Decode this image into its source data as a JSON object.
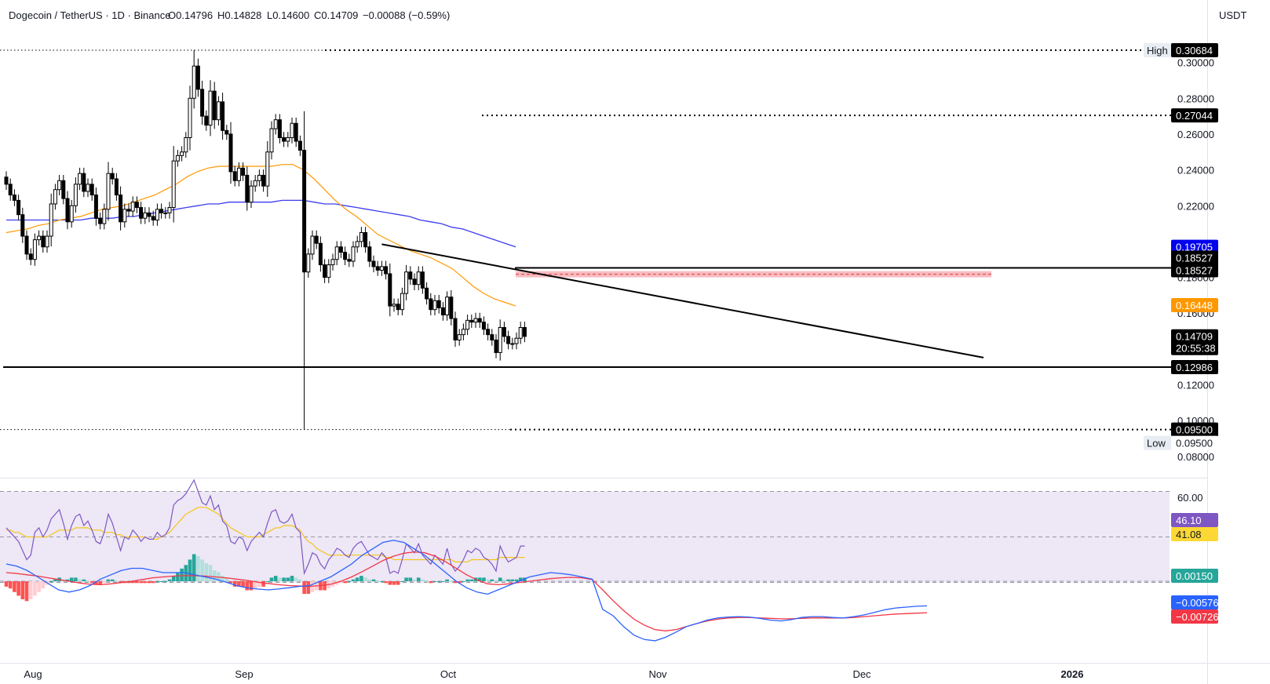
{
  "header": {
    "symbol": "Dogecoin / TetherUS · 1D · Binance",
    "open_label": "O",
    "open": "0.14796",
    "high_label": "H",
    "high": "0.14828",
    "low_label": "L",
    "low": "0.14600",
    "close_label": "C",
    "close": "0.14709",
    "change": "−0.00088 (−0.59%)",
    "currency": "USDT"
  },
  "price_axis": {
    "ticks": [
      "0.30000",
      "0.28000",
      "0.26000",
      "0.24000",
      "0.22000",
      "0.18000",
      "0.16000",
      "0.12000",
      "0.10000",
      "0.08000"
    ],
    "tick_values": [
      0.3,
      0.28,
      0.26,
      0.24,
      0.22,
      0.18,
      0.16,
      0.12,
      0.1,
      0.08
    ]
  },
  "price_labels": [
    {
      "key": "high-tag",
      "prefix": "High",
      "text": "0.30684",
      "value": 0.30684,
      "bg": "#ffffff",
      "fg": "#131722",
      "prefix_bg": "#e8edf3"
    },
    {
      "key": "high-line",
      "text": "0.30684",
      "value": 0.30684,
      "bg": "#000000",
      "fg": "#ffffff"
    },
    {
      "key": "level-27044",
      "text": "0.27044",
      "value": 0.27044,
      "bg": "#000000",
      "fg": "#ffffff"
    },
    {
      "key": "ma200",
      "text": "0.19705",
      "value": 0.19705,
      "bg": "#0000ee",
      "fg": "#ffffff"
    },
    {
      "key": "level-18527a",
      "text": "0.18527",
      "value": 0.18527,
      "bg": "#000000",
      "fg": "#ffffff",
      "offset": -13
    },
    {
      "key": "level-18527b",
      "text": "0.18527",
      "value": 0.18527,
      "bg": "#000000",
      "fg": "#ffffff",
      "offset": 3
    },
    {
      "key": "ma50",
      "text": "0.16448",
      "value": 0.16448,
      "bg": "#ff9800",
      "fg": "#ffffff"
    },
    {
      "key": "last",
      "text": "0.14709",
      "value": 0.14709,
      "bg": "#000000",
      "fg": "#ffffff"
    },
    {
      "key": "countdown",
      "text": "20:55:38",
      "value": 0.14709,
      "bg": "#000000",
      "fg": "#ffffff",
      "offset": 15
    },
    {
      "key": "support",
      "text": "0.12986",
      "value": 0.12986,
      "bg": "#000000",
      "fg": "#ffffff"
    },
    {
      "key": "low-line",
      "text": "0.09500",
      "value": 0.095,
      "bg": "#000000",
      "fg": "#ffffff"
    },
    {
      "key": "low-tag",
      "prefix": "Low",
      "text": "0.09500",
      "value": 0.095,
      "bg": "#ffffff",
      "fg": "#131722",
      "prefix_bg": "#e8edf3",
      "offset": 17
    }
  ],
  "rsi": {
    "tick": "60.00",
    "value_label": "46.10",
    "value_bg": "#7e57c2",
    "ma_label": "41.08",
    "ma_bg": "#fdd835"
  },
  "macd": {
    "hist_label": "0.00150",
    "hist_bg": "#26a69a",
    "macd_label": "−0.00576",
    "macd_bg": "#2962ff",
    "signal_label": "−0.00726",
    "signal_bg": "#f23645"
  },
  "time_axis": {
    "labels": [
      "Aug",
      "Sep",
      "Oct",
      "Nov",
      "Dec",
      "2026"
    ]
  },
  "colors": {
    "up_body": "#ffffff",
    "down_body": "#000000",
    "wick": "#000000",
    "ma50": "#ff9800",
    "ma200": "#3c3cf0",
    "zone": "#f4a6ae",
    "zone_line": "#e53935",
    "rsi_line": "#7e57c2",
    "rsi_ma": "#f5c518",
    "rsi_band": "#ede7f6",
    "macd_line": "#2962ff",
    "signal_line": "#f23645",
    "hist_up_strong": "#26a69a",
    "hist_up_weak": "#b2dfdb",
    "hist_down_strong": "#ff5252",
    "hist_down_weak": "#ffcdd2"
  },
  "chart_data": {
    "type": "candlestick",
    "pair": "Dogecoin / TetherUS",
    "interval": "1D",
    "exchange": "Binance",
    "y_range": [
      0.073,
      0.314
    ],
    "x_range": [
      "Jul 26",
      "Jan 3"
    ],
    "months": [
      "Aug",
      "Sep",
      "Oct",
      "Nov",
      "Dec",
      "2026"
    ],
    "high": 0.30684,
    "low": 0.095,
    "levels": [
      0.30684,
      0.27044,
      0.18527,
      0.12986,
      0.095
    ],
    "zone": [
      0.18,
      0.1835
    ],
    "trendline": [
      [
        0.1985,
        "Oct 28"
      ],
      [
        0.1352,
        "Dec 12"
      ]
    ],
    "closes": [
      0.232,
      0.226,
      0.223,
      0.215,
      0.203,
      0.193,
      0.19,
      0.201,
      0.203,
      0.197,
      0.203,
      0.221,
      0.229,
      0.234,
      0.224,
      0.211,
      0.22,
      0.232,
      0.238,
      0.228,
      0.232,
      0.226,
      0.213,
      0.21,
      0.218,
      0.238,
      0.235,
      0.226,
      0.211,
      0.218,
      0.217,
      0.222,
      0.219,
      0.213,
      0.216,
      0.214,
      0.212,
      0.218,
      0.216,
      0.216,
      0.219,
      0.245,
      0.248,
      0.25,
      0.258,
      0.28,
      0.298,
      0.285,
      0.27,
      0.265,
      0.284,
      0.268,
      0.278,
      0.262,
      0.26,
      0.239,
      0.234,
      0.241,
      0.237,
      0.222,
      0.231,
      0.234,
      0.237,
      0.231,
      0.25,
      0.263,
      0.268,
      0.258,
      0.256,
      0.258,
      0.266,
      0.256,
      0.251,
      0.183,
      0.193,
      0.203,
      0.199,
      0.187,
      0.18,
      0.187,
      0.19,
      0.197,
      0.194,
      0.19,
      0.189,
      0.197,
      0.2,
      0.205,
      0.197,
      0.189,
      0.186,
      0.184,
      0.186,
      0.182,
      0.164,
      0.165,
      0.162,
      0.171,
      0.183,
      0.179,
      0.176,
      0.183,
      0.174,
      0.168,
      0.162,
      0.167,
      0.163,
      0.159,
      0.169,
      0.157,
      0.145,
      0.148,
      0.151,
      0.156,
      0.155,
      0.157,
      0.155,
      0.151,
      0.148,
      0.145,
      0.138,
      0.152,
      0.147,
      0.143,
      0.143,
      0.146,
      0.152,
      0.147
    ],
    "ma50": [
      0.205,
      0.206,
      0.207,
      0.209,
      0.21,
      0.212,
      0.213,
      0.214,
      0.216,
      0.218,
      0.219,
      0.22,
      0.222,
      0.224,
      0.226,
      0.229,
      0.232,
      0.236,
      0.239,
      0.241,
      0.242,
      0.242,
      0.242,
      0.242,
      0.242,
      0.242,
      0.243,
      0.243,
      0.24,
      0.235,
      0.229,
      0.223,
      0.218,
      0.214,
      0.209,
      0.204,
      0.201,
      0.198,
      0.195,
      0.193,
      0.191,
      0.188,
      0.185,
      0.18,
      0.175,
      0.171,
      0.168,
      0.166,
      0.164
    ],
    "ma200": [
      0.212,
      0.212,
      0.212,
      0.212,
      0.212,
      0.212,
      0.212,
      0.212,
      0.213,
      0.213,
      0.213,
      0.214,
      0.214,
      0.215,
      0.216,
      0.217,
      0.218,
      0.219,
      0.22,
      0.221,
      0.221,
      0.222,
      0.222,
      0.222,
      0.222,
      0.222,
      0.223,
      0.223,
      0.223,
      0.222,
      0.221,
      0.221,
      0.22,
      0.219,
      0.218,
      0.217,
      0.216,
      0.215,
      0.214,
      0.212,
      0.211,
      0.21,
      0.208,
      0.207,
      0.205,
      0.203,
      0.201,
      0.199,
      0.197
    ],
    "rsi_line": [
      54,
      52,
      50,
      48,
      44,
      40,
      42,
      52,
      54,
      50,
      53,
      58,
      60,
      62,
      56,
      49,
      55,
      59,
      60,
      55,
      57,
      53,
      48,
      47,
      52,
      60,
      56,
      50,
      44,
      50,
      49,
      53,
      51,
      48,
      50,
      49,
      49,
      52,
      50,
      51,
      54,
      64,
      66,
      67,
      69,
      72,
      75,
      70,
      65,
      64,
      68,
      62,
      64,
      57,
      55,
      48,
      47,
      50,
      49,
      44,
      48,
      50,
      52,
      50,
      56,
      61,
      62,
      57,
      56,
      57,
      60,
      54,
      52,
      34,
      38,
      43,
      42,
      38,
      36,
      40,
      42,
      45,
      44,
      42,
      41,
      45,
      47,
      48,
      45,
      42,
      41,
      40,
      43,
      41,
      34,
      35,
      34,
      40,
      47,
      45,
      43,
      47,
      42,
      40,
      38,
      42,
      40,
      38,
      45,
      38,
      35,
      37,
      40,
      44,
      43,
      45,
      44,
      41,
      40,
      38,
      35,
      46,
      42,
      39,
      40,
      41,
      46,
      46
    ],
    "rsi_ma": [
      53,
      53,
      52,
      52,
      51,
      50,
      50,
      50,
      50,
      50,
      50,
      51,
      52,
      53,
      53,
      53,
      53,
      54,
      54,
      54,
      54,
      53,
      53,
      53,
      52,
      52,
      52,
      51,
      51,
      50,
      50,
      50,
      50,
      50,
      50,
      49,
      49,
      49,
      50,
      51,
      52,
      54,
      56,
      58,
      60,
      61,
      62,
      63,
      63,
      63,
      62,
      61,
      60,
      58,
      56,
      54,
      53,
      52,
      51,
      50,
      50,
      50,
      50,
      51,
      52,
      53,
      54,
      54,
      55,
      55,
      55,
      54,
      53,
      50,
      48,
      47,
      45,
      44,
      43,
      42,
      42,
      42,
      42,
      42,
      42,
      42,
      42,
      42,
      42,
      42,
      42,
      42,
      42,
      41,
      41,
      40,
      40,
      40,
      40,
      40,
      40,
      40,
      40,
      40,
      40,
      40,
      40,
      40,
      40,
      40,
      39,
      39,
      39,
      39,
      40,
      40,
      40,
      40,
      40,
      40,
      40,
      41,
      41,
      41,
      41,
      41,
      41,
      41
    ],
    "rsi_levels": [
      70,
      50,
      30
    ],
    "macd_hist": [
      -3,
      -4,
      -6,
      -8,
      -10,
      -11,
      -10,
      -8,
      -6,
      -4,
      -2,
      0,
      1,
      2,
      1,
      1,
      2,
      2,
      1,
      1,
      0,
      -1,
      -2,
      -2,
      -1,
      1,
      1,
      0,
      -1,
      -1,
      -1,
      -1,
      -1,
      -1,
      -1,
      -1,
      -1,
      0,
      0,
      0,
      1,
      3,
      5,
      7,
      9,
      12,
      15,
      14,
      12,
      10,
      9,
      6,
      5,
      3,
      2,
      -1,
      -3,
      -3,
      -3,
      -5,
      -5,
      -4,
      -3,
      -3,
      0,
      2,
      3,
      2,
      2,
      2,
      3,
      2,
      1,
      -7,
      -7,
      -6,
      -5,
      -5,
      -5,
      -4,
      -3,
      -2,
      -1,
      -1,
      0,
      1,
      2,
      3,
      2,
      1,
      1,
      0,
      0,
      -1,
      -2,
      -2,
      -2,
      0,
      2,
      2,
      1,
      2,
      1,
      0,
      -1,
      0,
      0,
      0,
      1,
      0,
      -1,
      -1,
      0,
      1,
      1,
      2,
      2,
      2,
      1,
      1,
      0,
      2,
      1,
      1,
      1,
      1,
      2,
      2
    ],
    "macd_line": [
      0.004,
      0.0035,
      0.0025,
      0.001,
      -0.0005,
      -0.002,
      -0.0025,
      -0.002,
      -0.001,
      0.0005,
      0.0015,
      0.0025,
      0.003,
      0.003,
      0.0025,
      0.002,
      0.002,
      0.002,
      0.0015,
      0.001,
      0.0005,
      -0.0002,
      -0.001,
      -0.0015,
      -0.0018,
      -0.002,
      -0.0018,
      -0.0015,
      -0.0012,
      -0.001,
      0.0,
      0.001,
      0.0025,
      0.004,
      0.006,
      0.0075,
      0.009,
      0.0095,
      0.009,
      0.0075,
      0.006,
      0.004,
      0.002,
      0.0,
      -0.0015,
      -0.0025,
      -0.003,
      -0.002,
      -0.001,
      0.0,
      0.001,
      0.0015,
      0.002,
      0.0018,
      0.0015,
      0.001,
      0.0005,
      -0.0065,
      -0.008,
      -0.0105,
      -0.0125,
      -0.0135,
      -0.0138,
      -0.013,
      -0.0118,
      -0.0105,
      -0.0098,
      -0.009,
      -0.0085,
      -0.0083,
      -0.0082,
      -0.0083,
      -0.0086,
      -0.009,
      -0.0092,
      -0.0089,
      -0.0084,
      -0.0082,
      -0.0082,
      -0.0084,
      -0.0085,
      -0.0082,
      -0.0078,
      -0.0072,
      -0.0066,
      -0.0062,
      -0.006,
      -0.0058,
      -0.0057
    ],
    "signal_line": [
      0.002,
      0.0018,
      0.0015,
      0.0012,
      0.0008,
      0.0004,
      0.0,
      -0.0004,
      -0.0007,
      -0.0008,
      -0.0006,
      -0.0003,
      0.0,
      0.0004,
      0.0008,
      0.001,
      0.0012,
      0.0013,
      0.0013,
      0.0012,
      0.001,
      0.0008,
      0.0005,
      0.0002,
      -0.0002,
      -0.0005,
      -0.0008,
      -0.001,
      -0.0011,
      -0.0012,
      -0.001,
      -0.0007,
      0.0,
      0.001,
      0.0022,
      0.0035,
      0.0048,
      0.0058,
      0.0065,
      0.0068,
      0.0066,
      0.0058,
      0.0045,
      0.003,
      0.0015,
      0.0003,
      -0.0006,
      -0.0008,
      -0.0006,
      -0.0003,
      0.0,
      0.0003,
      0.0006,
      0.0008,
      0.0009,
      0.0008,
      0.0004,
      -0.002,
      -0.0045,
      -0.0068,
      -0.0088,
      -0.0102,
      -0.0112,
      -0.0115,
      -0.0112,
      -0.0105,
      -0.0098,
      -0.0092,
      -0.0088,
      -0.0085,
      -0.0084,
      -0.0084,
      -0.0085,
      -0.0086,
      -0.0087,
      -0.0087,
      -0.0086,
      -0.0085,
      -0.0085,
      -0.0085,
      -0.0085,
      -0.0084,
      -0.0082,
      -0.008,
      -0.0078,
      -0.0076,
      -0.0075,
      -0.0074,
      -0.0073
    ]
  }
}
